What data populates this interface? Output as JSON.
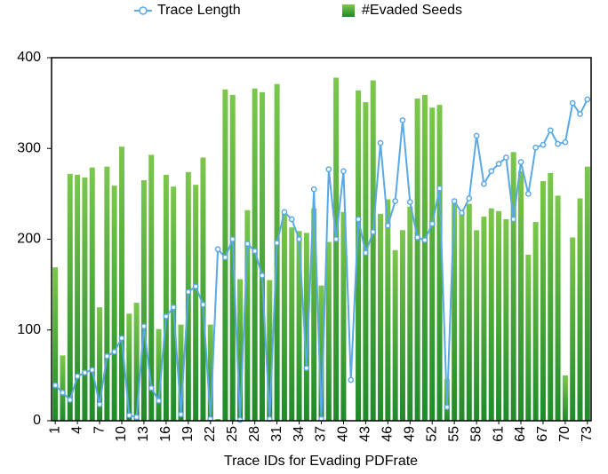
{
  "chart_data": {
    "type": "bar",
    "x_label": "Trace IDs for Evading PDFrate",
    "categories": [
      "1",
      null,
      null,
      "4",
      null,
      null,
      "7",
      null,
      null,
      "10",
      null,
      null,
      "13",
      null,
      null,
      "16",
      null,
      null,
      "19",
      null,
      null,
      "22",
      null,
      null,
      "25",
      null,
      null,
      "28",
      null,
      null,
      "31",
      null,
      null,
      "34",
      null,
      null,
      "37",
      null,
      null,
      "40",
      null,
      null,
      "43",
      null,
      null,
      "46",
      null,
      null,
      "49",
      null,
      null,
      "52",
      null,
      null,
      "55",
      null,
      null,
      "58",
      null,
      null,
      "61",
      null,
      null,
      "64",
      null,
      null,
      "67",
      null,
      null,
      "70",
      null,
      null,
      "73"
    ],
    "series": [
      {
        "name": "Trace Length",
        "type": "line",
        "color": "#5aa9e6",
        "values": [
          39,
          31,
          23,
          49,
          53,
          56,
          18,
          71,
          76,
          91,
          6,
          4,
          104,
          36,
          22,
          115,
          125,
          7,
          142,
          148,
          128,
          2,
          189,
          180,
          200,
          1,
          195,
          187,
          160,
          2,
          196,
          230,
          222,
          200,
          58,
          255,
          2,
          277,
          200,
          275,
          45,
          222,
          185,
          208,
          306,
          215,
          242,
          331,
          241,
          202,
          199,
          217,
          256,
          15,
          242,
          229,
          245,
          314,
          261,
          275,
          283,
          290,
          222,
          285,
          250,
          301,
          304,
          320,
          305,
          307,
          350,
          338,
          354
        ]
      },
      {
        "name": "#Evaded Seeds",
        "type": "bar",
        "color": "#3f9f35",
        "values": [
          169,
          72,
          272,
          271,
          268,
          279,
          125,
          280,
          259,
          302,
          118,
          130,
          265,
          293,
          101,
          271,
          258,
          106,
          274,
          260,
          290,
          106,
          2,
          365,
          359,
          156,
          232,
          366,
          362,
          155,
          371,
          228,
          213,
          209,
          207,
          234,
          149,
          197,
          378,
          230,
          0,
          364,
          351,
          375,
          228,
          244,
          188,
          210,
          236,
          355,
          359,
          345,
          348,
          46,
          240,
          229,
          239,
          210,
          225,
          234,
          231,
          222,
          296,
          275,
          183,
          219,
          264,
          273,
          248,
          50,
          202,
          245,
          280
        ]
      }
    ],
    "ylim": [
      0,
      400
    ],
    "yticks": [
      0,
      100,
      200,
      300,
      400
    ],
    "grid": false,
    "legend": "top"
  }
}
